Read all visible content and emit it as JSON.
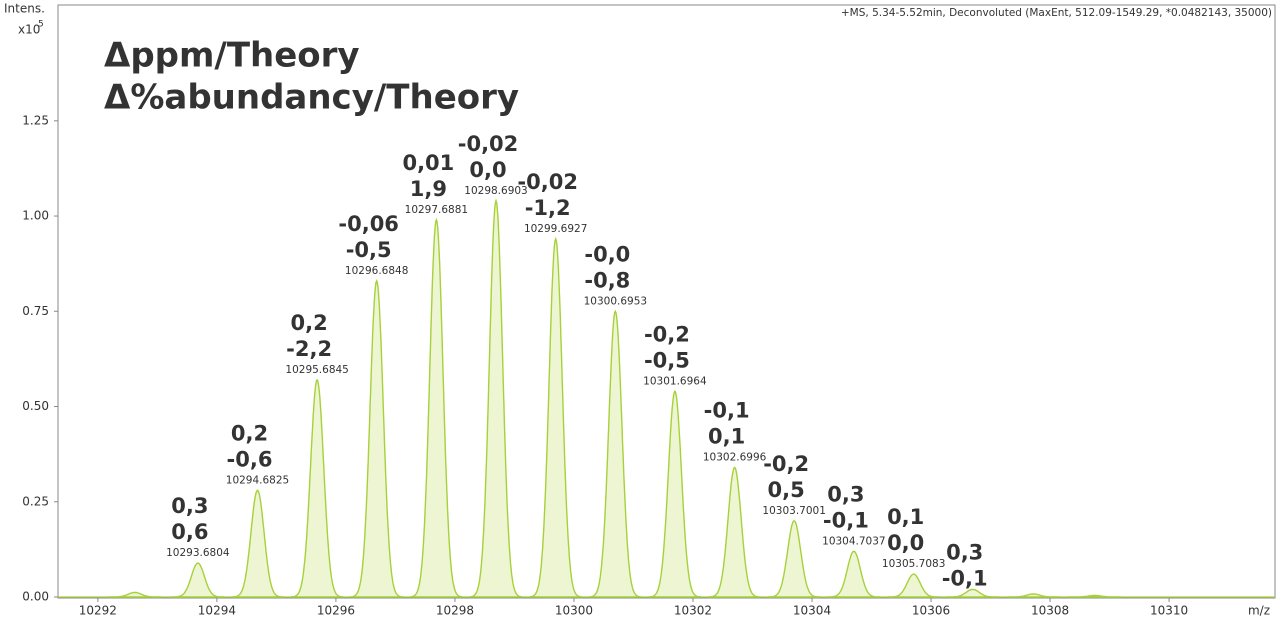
{
  "chart_data": {
    "type": "spectrum",
    "y_axis_label": "Intens.",
    "y_scale_prefix": "x10",
    "y_scale_exponent": "5",
    "subtitle": "+MS, 5.34-5.52min, Deconvoluted (MaxEnt, 512.09-1549.29, *0.0482143, 35000)",
    "x_axis_label": "m/z",
    "legend": [
      {
        "name": "Δppm/Theory",
        "color": "#1a7a1a"
      },
      {
        "name": "Δ%abundancy/Theory",
        "color": "#1f4e79"
      }
    ],
    "color": "#a6d13a",
    "fill": "#eef5d2",
    "x": [
      10293.6804,
      10294.6825,
      10295.6845,
      10296.6848,
      10297.6881,
      10298.6903,
      10299.6927,
      10300.6953,
      10301.6964,
      10302.6996,
      10303.7001,
      10304.7037,
      10305.7083,
      10306.7
    ],
    "x_labels": [
      "10293.6804",
      "10294.6825",
      "10295.6845",
      "10296.6848",
      "10297.6881",
      "10298.6903",
      "10299.6927",
      "10300.6953",
      "10301.6964",
      "10302.6996",
      "10303.7001",
      "10304.7037",
      "10305.7083",
      null
    ],
    "values": [
      0.089,
      0.28,
      0.57,
      0.83,
      0.99,
      1.04,
      0.94,
      0.75,
      0.54,
      0.34,
      0.2,
      0.12,
      0.06,
      0.02
    ],
    "ppm_labels": [
      "0,3",
      "0,2",
      "0,2",
      "-0,06",
      "0,01",
      "-0,02",
      "-0,02",
      "-0,0",
      "-0,2",
      "-0,1",
      "-0,2",
      "0,3",
      "0,1",
      "0,3"
    ],
    "abundancy_labels": [
      "0,6",
      "-0,6",
      "-2,2",
      "-0,5",
      "1,9",
      "0,0",
      "-1,2",
      "-0,8",
      "-0,5",
      "0,1",
      "0,5",
      "-0,1",
      "0,0",
      "-0,1"
    ],
    "minor_peaks": {
      "x": [
        10292.62,
        10307.72,
        10308.75
      ],
      "values": [
        0.012,
        0.008,
        0.004
      ]
    },
    "xlim": [
      10291.33,
      10311.78
    ],
    "ylim": [
      0,
      1.554
    ],
    "xticks": [
      10292,
      10294,
      10296,
      10298,
      10300,
      10302,
      10304,
      10306,
      10308,
      10310
    ],
    "yticks": [
      {
        "value": 0,
        "label": "0.00"
      },
      {
        "value": 0.25,
        "label": "0.25"
      },
      {
        "value": 0.5,
        "label": "0.50"
      },
      {
        "value": 0.75,
        "label": "0.75"
      },
      {
        "value": 1,
        "label": "1.00"
      },
      {
        "value": 1.25,
        "label": "1.25"
      }
    ]
  }
}
